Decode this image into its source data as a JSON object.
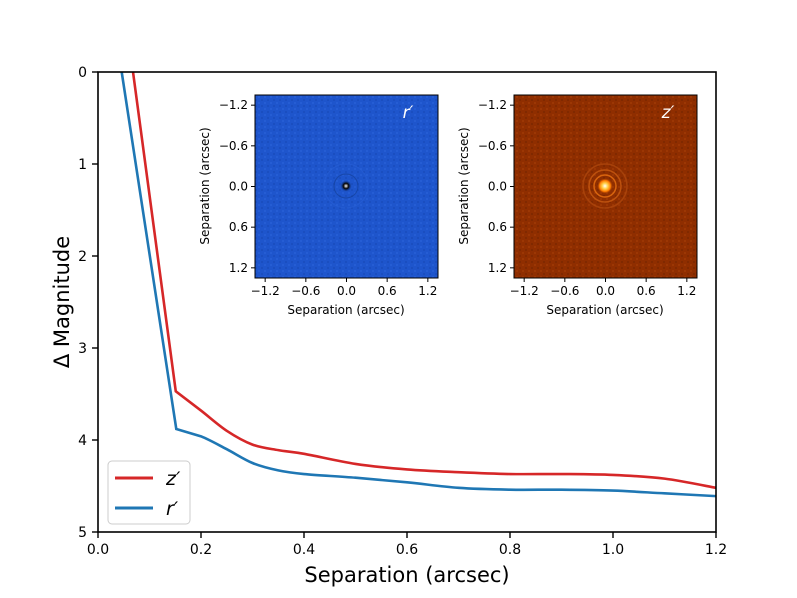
{
  "chart_data": [
    {
      "type": "line",
      "title": "",
      "xlabel": "Separation (arcsec)",
      "ylabel": "Δ Magnitude",
      "xlim": [
        0.0,
        1.2
      ],
      "ylim": [
        5,
        0
      ],
      "y_inverted": true,
      "xticks": [
        "0.0",
        "0.2",
        "0.4",
        "0.6",
        "0.8",
        "1.0",
        "1.2"
      ],
      "xtick_values": [
        0.0,
        0.2,
        0.4,
        0.6,
        0.8,
        1.0,
        1.2
      ],
      "yticks": [
        "0",
        "1",
        "2",
        "3",
        "4",
        "5"
      ],
      "ytick_values": [
        0,
        1,
        2,
        3,
        4,
        5
      ],
      "legend_position": "lower-left",
      "series": [
        {
          "name": "z′",
          "color": "#d62728",
          "x": [
            0.068,
            0.151,
            0.2,
            0.25,
            0.3,
            0.35,
            0.4,
            0.5,
            0.6,
            0.7,
            0.8,
            0.9,
            1.0,
            1.1,
            1.2
          ],
          "y": [
            0.0,
            3.47,
            3.68,
            3.9,
            4.05,
            4.11,
            4.15,
            4.26,
            4.32,
            4.35,
            4.37,
            4.37,
            4.38,
            4.42,
            4.52
          ]
        },
        {
          "name": "r′",
          "color": "#1f77b4",
          "x": [
            0.046,
            0.152,
            0.2,
            0.25,
            0.3,
            0.35,
            0.4,
            0.5,
            0.6,
            0.7,
            0.8,
            0.9,
            1.0,
            1.1,
            1.2
          ],
          "y": [
            0.0,
            3.88,
            3.96,
            4.1,
            4.25,
            4.33,
            4.37,
            4.41,
            4.46,
            4.52,
            4.54,
            4.54,
            4.55,
            4.58,
            4.61
          ]
        }
      ]
    },
    {
      "type": "heatmap",
      "title": "r′",
      "xlabel": "Separation (arcsec)",
      "ylabel": "Separation (arcsec)",
      "xlim": [
        -1.35,
        1.35
      ],
      "ylim": [
        1.35,
        -1.35
      ],
      "xticks": [
        "−1.2",
        "−0.6",
        "0.0",
        "0.6",
        "1.2"
      ],
      "xtick_values": [
        -1.2,
        -0.6,
        0.0,
        0.6,
        1.2
      ],
      "yticks": [
        "−1.2",
        "−0.6",
        "0.0",
        "0.6",
        "1.2"
      ],
      "ytick_values": [
        -1.2,
        -0.6,
        0.0,
        0.6,
        1.2
      ],
      "colormap_color": "#1e55cc",
      "source_position": [
        0.0,
        0.0
      ]
    },
    {
      "type": "heatmap",
      "title": "z′",
      "xlabel": "Separation (arcsec)",
      "ylabel": "Separation (arcsec)",
      "xlim": [
        -1.35,
        1.35
      ],
      "ylim": [
        1.35,
        -1.35
      ],
      "xticks": [
        "−1.2",
        "−0.6",
        "0.0",
        "0.6",
        "1.2"
      ],
      "xtick_values": [
        -1.2,
        -0.6,
        0.0,
        0.6,
        1.2
      ],
      "yticks": [
        "−1.2",
        "−0.6",
        "0.0",
        "0.6",
        "1.2"
      ],
      "ytick_values": [
        -1.2,
        -0.6,
        0.0,
        0.6,
        1.2
      ],
      "colormap_color": "#8f2e00",
      "source_position": [
        0.0,
        0.0
      ]
    }
  ]
}
